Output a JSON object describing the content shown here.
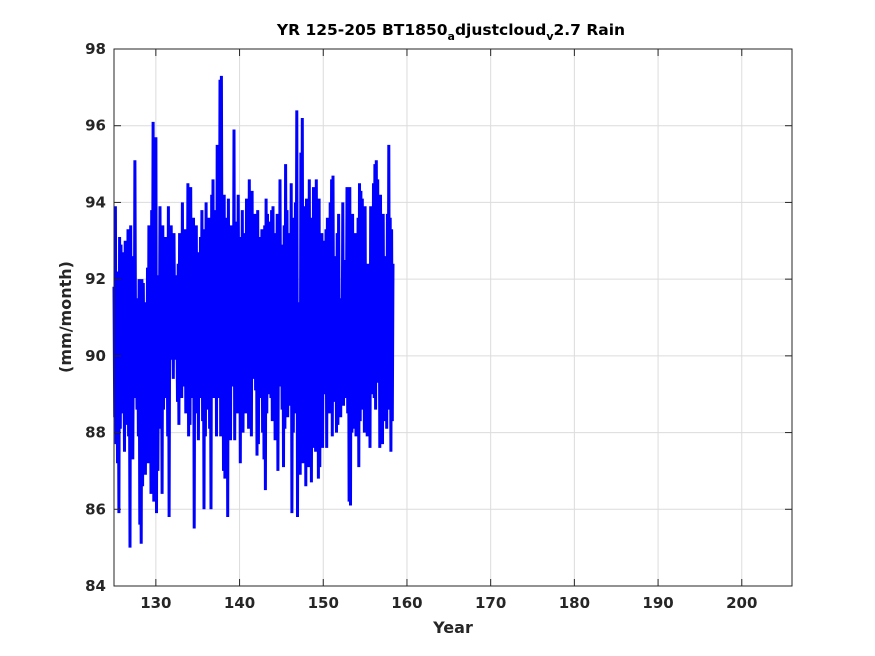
{
  "chart_data": {
    "type": "line",
    "title": {
      "main": "YR 125-205 BT1850",
      "sub1": "a",
      "mid": "djustcloud",
      "sub2": "v",
      "end": "2.7 Rain"
    },
    "xlabel": "Year",
    "ylabel": "(mm/month)",
    "xlim": [
      125,
      206
    ],
    "ylim": [
      84,
      98
    ],
    "xticks": [
      "130",
      "140",
      "150",
      "160",
      "170",
      "180",
      "190",
      "200"
    ],
    "yticks": [
      "84",
      "86",
      "88",
      "90",
      "92",
      "94",
      "96",
      "98"
    ],
    "grid": true,
    "series": [
      {
        "color": "#0000ff",
        "x_start": 125.0,
        "x_step": 0.0833333,
        "values": [
          91.8,
          88.4,
          93.9,
          87.7,
          92.2,
          87.2,
          91.5,
          85.9,
          93.1,
          88.1,
          92.9,
          89.0,
          92.7,
          88.5,
          90.6,
          87.5,
          93.0,
          89.6,
          92.1,
          88.2,
          93.3,
          87.9,
          91.0,
          85.0,
          93.4,
          88.4,
          92.6,
          87.3,
          91.8,
          88.9,
          95.1,
          89.9,
          90.8,
          88.6,
          91.5,
          87.9,
          92.0,
          85.6,
          89.2,
          85.1,
          92.0,
          86.6,
          91.9,
          88.9,
          91.4,
          86.9,
          91.4,
          88.4,
          92.3,
          87.2,
          93.4,
          88.9,
          91.4,
          86.4,
          93.8,
          88.9,
          96.1,
          86.2,
          93.1,
          88.9,
          95.7,
          85.9,
          92.1,
          87.0,
          91.4,
          89.4,
          93.9,
          88.1,
          92.1,
          86.4,
          93.4,
          88.6,
          91.4,
          89.0,
          93.1,
          88.9,
          92.0,
          87.9,
          93.9,
          85.8,
          92.2,
          89.9,
          93.4,
          90.0,
          91.8,
          89.4,
          93.2,
          90.2,
          92.1,
          89.9,
          91.4,
          88.8,
          92.4,
          88.2,
          93.2,
          89.6,
          91.6,
          88.9,
          94.0,
          89.2,
          92.4,
          90.4,
          93.3,
          88.5,
          91.6,
          89.2,
          94.5,
          87.9,
          93.3,
          88.2,
          94.4,
          89.4,
          91.2,
          88.9,
          93.6,
          85.5,
          92.4,
          89.8,
          93.4,
          88.5,
          92.7,
          87.8,
          91.9,
          89.1,
          93.1,
          88.9,
          93.8,
          88.3,
          92.0,
          86.0,
          93.3,
          87.9,
          94.0,
          88.6,
          92.0,
          90.4,
          93.6,
          88.1,
          91.8,
          86.0,
          94.2,
          89.1,
          94.6,
          88.9,
          92.3,
          89.4,
          93.8,
          87.9,
          95.5,
          88.9,
          94.6,
          89.8,
          97.2,
          87.9,
          97.3,
          90.8,
          93.1,
          87.0,
          94.2,
          86.8,
          93.6,
          87.3,
          92.6,
          85.8,
          94.1,
          88.4,
          92.9,
          87.8,
          93.4,
          90.2,
          92.9,
          89.2,
          95.9,
          87.8,
          93.5,
          89.8,
          92.6,
          88.5,
          94.2,
          89.9,
          93.1,
          87.2,
          92.7,
          89.6,
          93.8,
          88.0,
          92.4,
          89.6,
          93.2,
          88.5,
          94.1,
          90.1,
          93.4,
          88.1,
          94.6,
          89.2,
          92.9,
          87.9,
          94.3,
          89.4,
          93.5,
          89.8,
          93.7,
          89.1,
          92.5,
          87.4,
          93.8,
          87.7,
          92.3,
          89.2,
          93.1,
          88.9,
          93.3,
          88.0,
          93.0,
          87.3,
          93.4,
          86.5,
          94.1,
          88.5,
          93.7,
          89.0,
          93.5,
          89.7,
          92.7,
          88.9,
          93.8,
          88.3,
          93.9,
          88.7,
          93.2,
          87.8,
          93.0,
          89.3,
          93.7,
          87.0,
          92.1,
          89.2,
          94.6,
          89.9,
          92.9,
          88.6,
          92.7,
          87.1,
          93.4,
          88.1,
          95.0,
          89.6,
          93.8,
          88.4,
          92.2,
          89.8,
          93.2,
          88.7,
          94.5,
          85.9,
          93.4,
          88.0,
          93.6,
          88.5,
          94.0,
          90.0,
          96.4,
          85.8,
          91.4,
          86.9,
          91.4,
          86.9,
          95.3,
          88.6,
          96.2,
          87.2,
          93.9,
          87.5,
          93.7,
          86.6,
          94.1,
          87.8,
          93.7,
          87.1,
          94.6,
          87.6,
          93.6,
          86.7,
          93.2,
          87.6,
          94.4,
          88.9,
          93.8,
          87.5,
          94.6,
          89.6,
          93.6,
          86.8,
          94.1,
          87.1,
          93.1,
          88.2,
          93.2,
          87.6,
          93.0,
          90.4,
          92.5,
          89.0,
          93.3,
          87.6,
          93.6,
          88.6,
          92.1,
          88.5,
          94.0,
          88.7,
          94.6,
          87.9,
          94.7,
          88.8,
          92.6,
          89.5,
          91.7,
          88.0,
          93.2,
          88.2,
          93.7,
          89.9,
          91.4,
          88.4,
          91.5,
          89.6,
          94.0,
          88.7,
          91.6,
          88.9,
          92.5,
          89.9,
          94.4,
          88.5,
          93.4,
          86.2,
          94.4,
          86.1,
          93.2,
          88.0,
          93.7,
          88.1,
          92.2,
          89.0,
          93.2,
          87.9,
          92.3,
          88.9,
          93.6,
          87.1,
          94.5,
          88.3,
          94.3,
          88.6,
          94.1,
          89.0,
          92.1,
          88.0,
          93.9,
          88.2,
          92.2,
          87.9,
          92.4,
          88.1,
          92.2,
          87.6,
          93.9,
          89.0,
          93.6,
          89.2,
          94.5,
          88.9,
          95.0,
          88.6,
          95.1,
          89.3,
          94.6,
          89.5,
          93.4,
          87.6,
          94.2,
          88.1,
          93.5,
          87.7,
          93.7,
          88.3,
          92.6,
          89.2,
          92.5,
          88.1,
          93.7,
          88.9,
          95.5,
          88.6,
          93.6,
          87.5,
          93.3,
          88.3,
          92.4
        ]
      }
    ]
  }
}
